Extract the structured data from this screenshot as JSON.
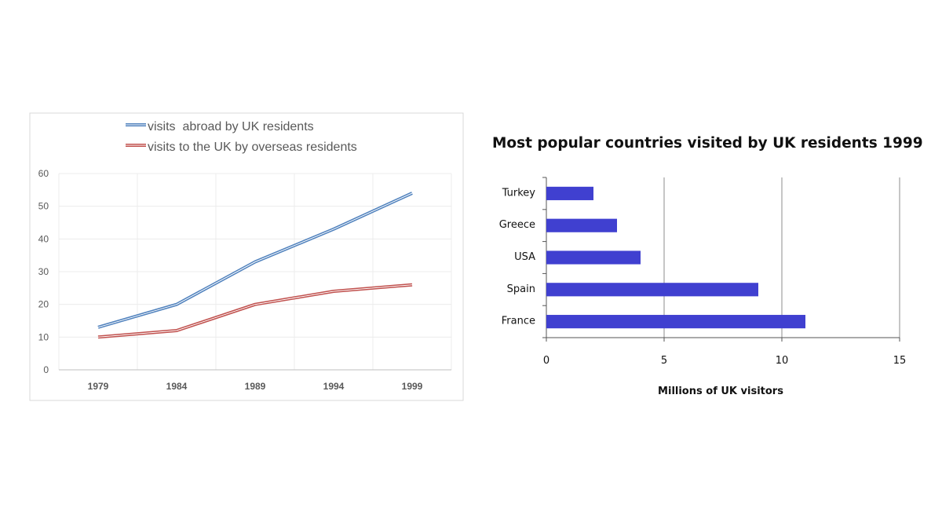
{
  "chart_data": [
    {
      "type": "line",
      "title": "",
      "xlabel": "",
      "ylabel": "",
      "x": [
        "1979",
        "1984",
        "1989",
        "1994",
        "1999"
      ],
      "ylim": [
        0,
        60
      ],
      "yticks": [
        "0",
        "10",
        "20",
        "30",
        "40",
        "50",
        "60"
      ],
      "grid": true,
      "legend_position": "top",
      "series": [
        {
          "name": "visits  abroad by UK residents",
          "color": "#4f81bd",
          "values": [
            13,
            20,
            33,
            43,
            54
          ]
        },
        {
          "name": "visits to the UK by overseas residents",
          "color": "#c0504d",
          "values": [
            10,
            12,
            20,
            24,
            26
          ]
        }
      ]
    },
    {
      "type": "bar",
      "orientation": "horizontal",
      "title": "Most popular countries visited by UK residents 1999",
      "xlabel": "Millions of UK visitors",
      "ylabel": "",
      "categories": [
        "Turkey",
        "Greece",
        "USA",
        "Spain",
        "France"
      ],
      "values": [
        2,
        3,
        4,
        9,
        11
      ],
      "xlim": [
        0,
        15
      ],
      "xticks": [
        "0",
        "5",
        "10",
        "15"
      ],
      "grid": true,
      "bar_color": "#4040d0"
    }
  ]
}
